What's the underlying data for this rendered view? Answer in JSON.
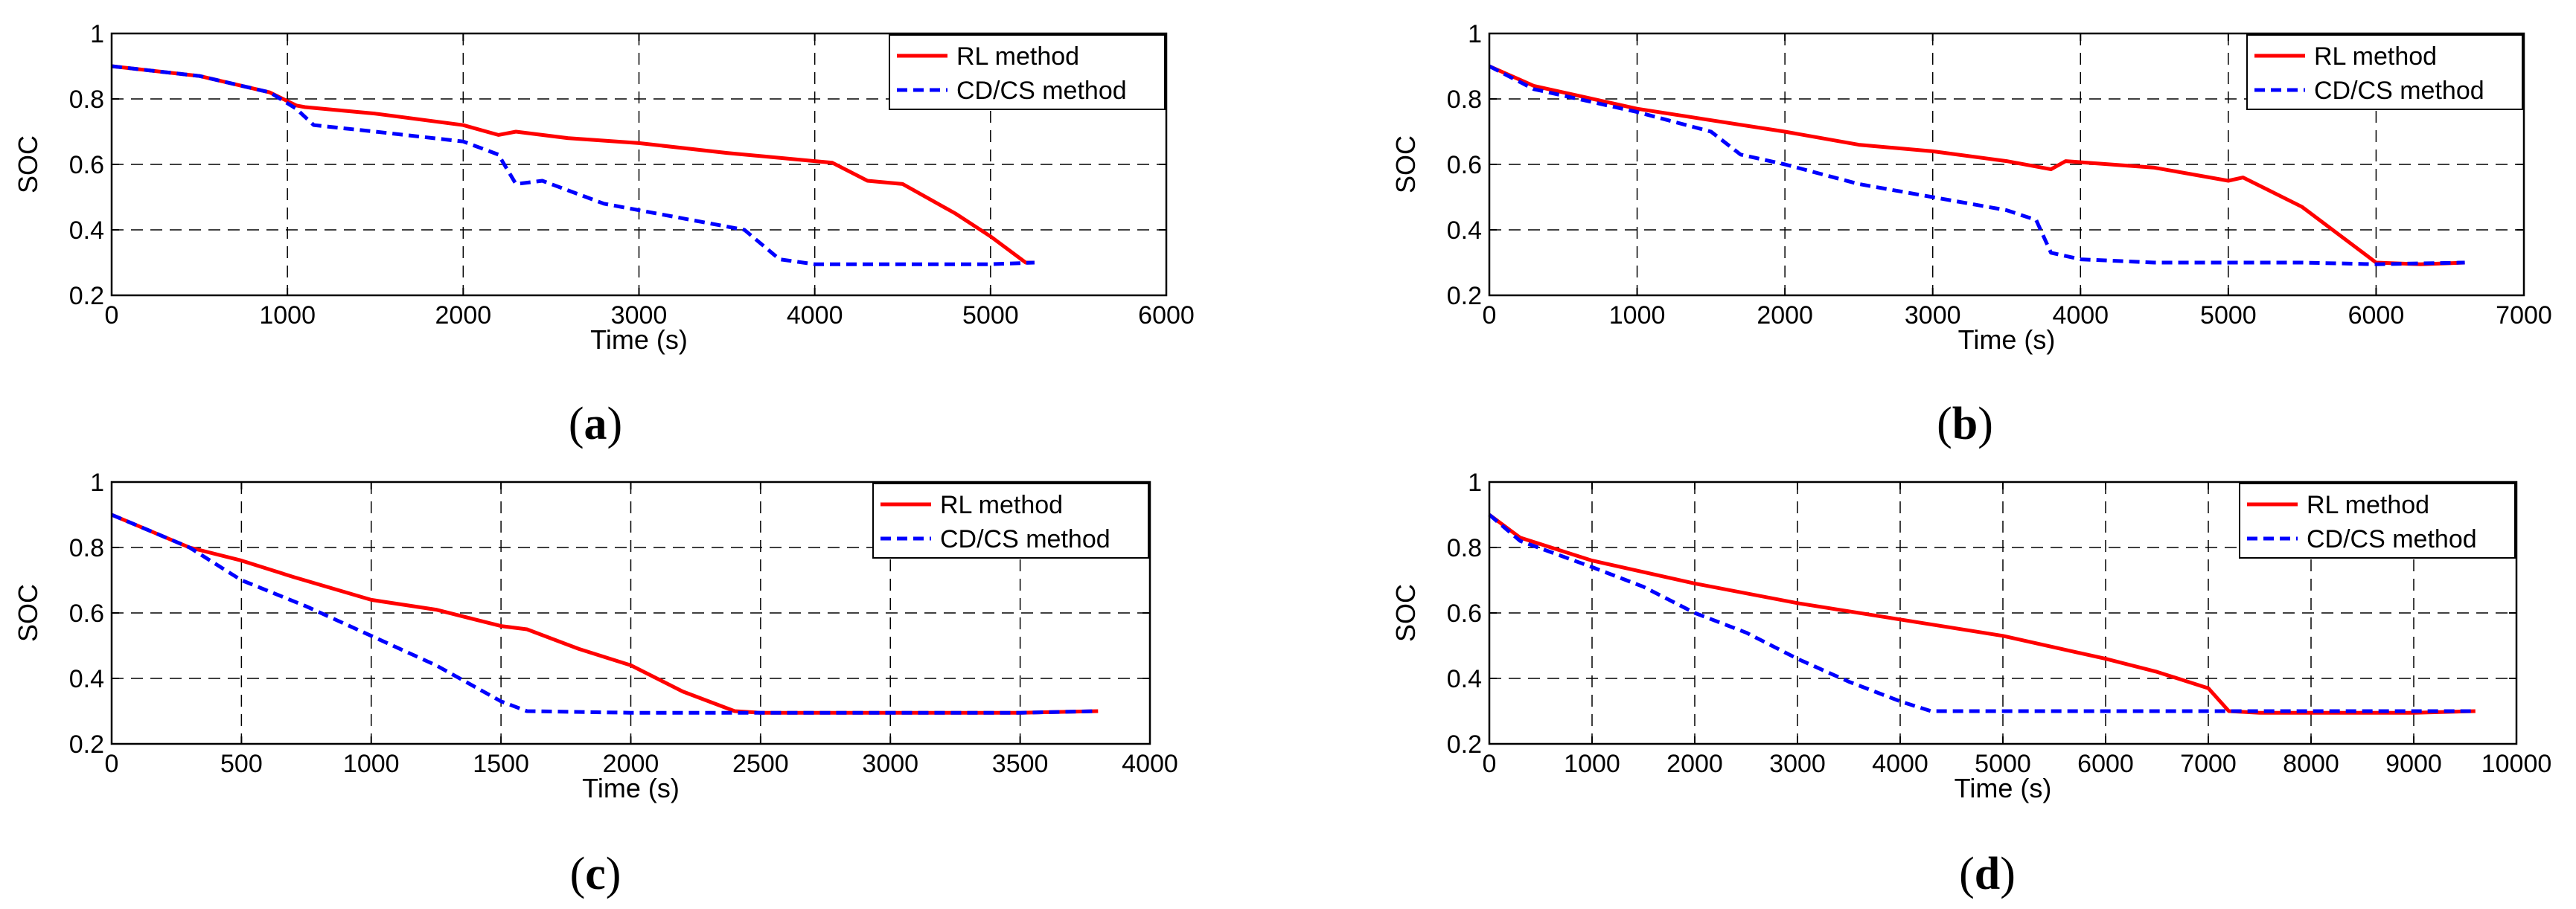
{
  "chart_data": [
    {
      "type": "line",
      "caption": "(a)",
      "caption_letter": "a",
      "xlabel": "Time (s)",
      "ylabel": "SOC",
      "xlim": [
        0,
        6000
      ],
      "ylim": [
        0.2,
        1.0
      ],
      "xticks": [
        "0",
        "1000",
        "2000",
        "3000",
        "4000",
        "5000",
        "6000"
      ],
      "yticks": [
        "0.2",
        "0.4",
        "0.6",
        "0.8",
        "1"
      ],
      "grid": true,
      "legend_position": "top-right",
      "series": [
        {
          "name": "RL method",
          "color": "#ff0000",
          "style": "solid",
          "x": [
            0,
            500,
            900,
            1050,
            1100,
            1500,
            2000,
            2200,
            2300,
            2600,
            3000,
            3500,
            4000,
            4100,
            4300,
            4500,
            4800,
            5000,
            5200,
            5250
          ],
          "y": [
            0.9,
            0.87,
            0.82,
            0.78,
            0.775,
            0.755,
            0.72,
            0.69,
            0.7,
            0.68,
            0.665,
            0.635,
            0.61,
            0.605,
            0.55,
            0.54,
            0.45,
            0.38,
            0.3,
            0.3
          ]
        },
        {
          "name": "CD/CS method",
          "color": "#0000ff",
          "style": "dashed",
          "x": [
            0,
            500,
            900,
            1050,
            1150,
            1500,
            2000,
            2200,
            2300,
            2450,
            2800,
            3200,
            3600,
            3800,
            4000,
            4500,
            5000,
            5250
          ],
          "y": [
            0.9,
            0.87,
            0.82,
            0.77,
            0.72,
            0.7,
            0.67,
            0.63,
            0.54,
            0.55,
            0.48,
            0.44,
            0.4,
            0.31,
            0.295,
            0.295,
            0.295,
            0.3
          ]
        }
      ]
    },
    {
      "type": "line",
      "caption": "(b)",
      "caption_letter": "b",
      "xlabel": "Time (s)",
      "ylabel": "SOC",
      "xlim": [
        0,
        7000
      ],
      "ylim": [
        0.2,
        1.0
      ],
      "xticks": [
        "0",
        "1000",
        "2000",
        "3000",
        "4000",
        "5000",
        "6000",
        "7000"
      ],
      "yticks": [
        "0.2",
        "0.4",
        "0.6",
        "0.8",
        "1"
      ],
      "grid": true,
      "legend_position": "top-right",
      "series": [
        {
          "name": "RL method",
          "color": "#ff0000",
          "style": "solid",
          "x": [
            0,
            300,
            1000,
            2000,
            2500,
            3000,
            3500,
            3800,
            3900,
            4500,
            5000,
            5100,
            5500,
            6000,
            6300,
            6600
          ],
          "y": [
            0.9,
            0.84,
            0.77,
            0.7,
            0.66,
            0.64,
            0.61,
            0.585,
            0.61,
            0.59,
            0.55,
            0.56,
            0.47,
            0.3,
            0.295,
            0.3
          ]
        },
        {
          "name": "CD/CS method",
          "color": "#0000ff",
          "style": "dashed",
          "x": [
            0,
            300,
            1000,
            1500,
            1700,
            2000,
            2500,
            3000,
            3500,
            3700,
            3800,
            4000,
            4500,
            5000,
            5500,
            6000,
            6600
          ],
          "y": [
            0.9,
            0.83,
            0.76,
            0.7,
            0.63,
            0.6,
            0.54,
            0.5,
            0.46,
            0.43,
            0.33,
            0.31,
            0.3,
            0.3,
            0.3,
            0.295,
            0.3
          ]
        }
      ]
    },
    {
      "type": "line",
      "caption": "(c)",
      "caption_letter": "c",
      "xlabel": "Time (s)",
      "ylabel": "SOC",
      "xlim": [
        0,
        4000
      ],
      "ylim": [
        0.2,
        1.0
      ],
      "xticks": [
        "0",
        "500",
        "1000",
        "1500",
        "2000",
        "2500",
        "3000",
        "3500",
        "4000"
      ],
      "yticks": [
        "0.2",
        "0.4",
        "0.6",
        "0.8",
        "1"
      ],
      "grid": true,
      "legend_position": "top-right",
      "series": [
        {
          "name": "RL method",
          "color": "#ff0000",
          "style": "solid",
          "x": [
            0,
            300,
            500,
            700,
            1000,
            1250,
            1500,
            1600,
            1800,
            2000,
            2200,
            2400,
            2500,
            3000,
            3500,
            3800
          ],
          "y": [
            0.9,
            0.8,
            0.76,
            0.71,
            0.64,
            0.61,
            0.56,
            0.55,
            0.49,
            0.44,
            0.36,
            0.3,
            0.295,
            0.295,
            0.295,
            0.3
          ]
        },
        {
          "name": "CD/CS method",
          "color": "#0000ff",
          "style": "dashed",
          "x": [
            0,
            300,
            500,
            750,
            1000,
            1250,
            1500,
            1600,
            2000,
            2500,
            3000,
            3500,
            3800
          ],
          "y": [
            0.9,
            0.8,
            0.7,
            0.62,
            0.53,
            0.44,
            0.33,
            0.3,
            0.295,
            0.295,
            0.295,
            0.295,
            0.3
          ]
        }
      ]
    },
    {
      "type": "line",
      "caption": "(d)",
      "caption_letter": "d",
      "xlabel": "Time (s)",
      "ylabel": "SOC",
      "xlim": [
        0,
        10000
      ],
      "ylim": [
        0.2,
        1.0
      ],
      "xticks": [
        "0",
        "1000",
        "2000",
        "3000",
        "4000",
        "5000",
        "6000",
        "7000",
        "8000",
        "9000",
        "10000"
      ],
      "yticks": [
        "0.2",
        "0.4",
        "0.6",
        "0.8",
        "1"
      ],
      "grid": true,
      "legend_position": "top-right",
      "series": [
        {
          "name": "RL method",
          "color": "#ff0000",
          "style": "solid",
          "x": [
            0,
            300,
            1000,
            2000,
            3000,
            4000,
            5000,
            6000,
            6500,
            7000,
            7200,
            7500,
            8000,
            9000,
            9600
          ],
          "y": [
            0.9,
            0.83,
            0.76,
            0.69,
            0.63,
            0.58,
            0.53,
            0.46,
            0.42,
            0.37,
            0.3,
            0.295,
            0.295,
            0.295,
            0.3
          ]
        },
        {
          "name": "CD/CS method",
          "color": "#0000ff",
          "style": "dashed",
          "x": [
            0,
            300,
            1000,
            1500,
            2000,
            2500,
            3000,
            3500,
            4000,
            4300,
            5000,
            6000,
            7000,
            8000,
            9000,
            9600
          ],
          "y": [
            0.9,
            0.82,
            0.74,
            0.68,
            0.6,
            0.54,
            0.46,
            0.39,
            0.33,
            0.3,
            0.3,
            0.3,
            0.3,
            0.3,
            0.3,
            0.3
          ]
        }
      ]
    }
  ]
}
